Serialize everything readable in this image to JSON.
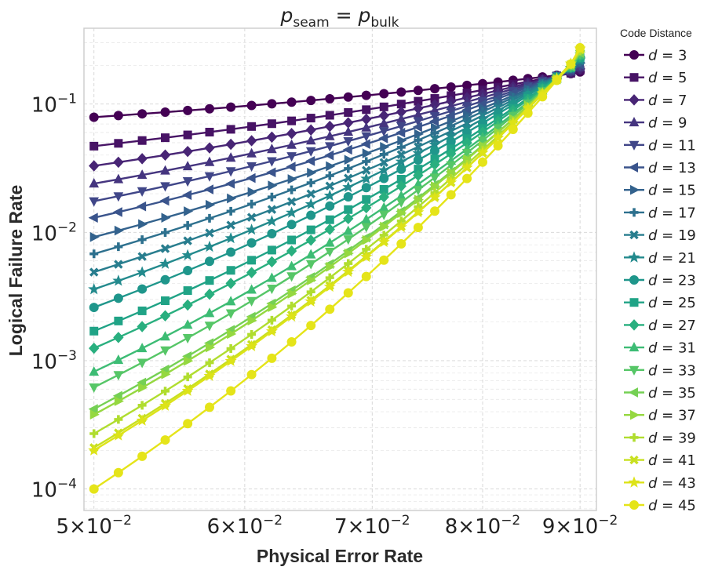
{
  "chart_data": {
    "type": "line",
    "title": "p_seam = p_bulk",
    "title_parts": {
      "p1": "p",
      "sub1": "seam",
      "eq": " = ",
      "p2": "p",
      "sub2": "bulk"
    },
    "xlabel": "Physical Error Rate",
    "ylabel": "Logical Failure Rate",
    "xscale": "log",
    "yscale": "log",
    "xlim": [
      0.0494,
      0.0918
    ],
    "ylim": [
      6.8e-05,
      0.39
    ],
    "xticks": [
      {
        "value": 0.05,
        "mant": "5",
        "times": "×",
        "base": "10",
        "exp": "−2"
      },
      {
        "value": 0.06,
        "mant": "6",
        "times": "×",
        "base": "10",
        "exp": "−2"
      },
      {
        "value": 0.07,
        "mant": "7",
        "times": "×",
        "base": "10",
        "exp": "−2"
      },
      {
        "value": 0.08,
        "mant": "8",
        "times": "×",
        "base": "10",
        "exp": "−2"
      },
      {
        "value": 0.09,
        "mant": "9",
        "times": "×",
        "base": "10",
        "exp": "−2"
      }
    ],
    "yticks": [
      {
        "value": 0.1,
        "base": "10",
        "exp": "−1"
      },
      {
        "value": 0.01,
        "base": "10",
        "exp": "−2"
      },
      {
        "value": 0.001,
        "base": "10",
        "exp": "−3"
      },
      {
        "value": 0.0001,
        "base": "10",
        "exp": "−4"
      }
    ],
    "grid": true,
    "legend_title": "Code Distance",
    "legend_position": "outside-right",
    "x": [
      0.05,
      0.0515,
      0.053,
      0.0545,
      0.056,
      0.0575,
      0.059,
      0.0605,
      0.062,
      0.0635,
      0.065,
      0.0665,
      0.068,
      0.0695,
      0.071,
      0.0725,
      0.074,
      0.0755,
      0.077,
      0.0785,
      0.08,
      0.0815,
      0.083,
      0.0845,
      0.086,
      0.0875,
      0.089,
      0.09
    ],
    "series": [
      {
        "name": "d = 3",
        "label_var": "d",
        "label_eq": " = ",
        "label_num": "3",
        "marker": "circle",
        "color": "#440154",
        "y_start": 0.079,
        "y_end": 0.178
      },
      {
        "name": "d = 5",
        "label_var": "d",
        "label_eq": " = ",
        "label_num": "5",
        "marker": "square",
        "color": "#471365",
        "y_start": 0.047,
        "y_end": 0.183
      },
      {
        "name": "d = 7",
        "label_var": "d",
        "label_eq": " = ",
        "label_num": "7",
        "marker": "diamond",
        "color": "#482575",
        "y_start": 0.033,
        "y_end": 0.188
      },
      {
        "name": "d = 9",
        "label_var": "d",
        "label_eq": " = ",
        "label_num": "9",
        "marker": "triangle-up",
        "color": "#45357f",
        "y_start": 0.024,
        "y_end": 0.193
      },
      {
        "name": "d = 11",
        "label_var": "d",
        "label_eq": " = ",
        "label_num": "11",
        "marker": "triangle-down",
        "color": "#404688",
        "y_start": 0.0175,
        "y_end": 0.198
      },
      {
        "name": "d = 13",
        "label_var": "d",
        "label_eq": " = ",
        "label_num": "13",
        "marker": "triangle-left",
        "color": "#3a548c",
        "y_start": 0.013,
        "y_end": 0.203
      },
      {
        "name": "d = 15",
        "label_var": "d",
        "label_eq": " = ",
        "label_num": "15",
        "marker": "triangle-right",
        "color": "#33628d",
        "y_start": 0.0092,
        "y_end": 0.208
      },
      {
        "name": "d = 17",
        "label_var": "d",
        "label_eq": " = ",
        "label_num": "17",
        "marker": "plus",
        "color": "#2d708e",
        "y_start": 0.0068,
        "y_end": 0.213
      },
      {
        "name": "d = 19",
        "label_var": "d",
        "label_eq": " = ",
        "label_num": "19",
        "marker": "x",
        "color": "#287d8e",
        "y_start": 0.0049,
        "y_end": 0.218
      },
      {
        "name": "d = 21",
        "label_var": "d",
        "label_eq": " = ",
        "label_num": "21",
        "marker": "star",
        "color": "#238a8d",
        "y_start": 0.0036,
        "y_end": 0.222
      },
      {
        "name": "d = 23",
        "label_var": "d",
        "label_eq": " = ",
        "label_num": "23",
        "marker": "circle",
        "color": "#1f968b",
        "y_start": 0.0026,
        "y_end": 0.226
      },
      {
        "name": "d = 25",
        "label_var": "d",
        "label_eq": " = ",
        "label_num": "25",
        "marker": "square",
        "color": "#20a386",
        "y_start": 0.0017,
        "y_end": 0.23
      },
      {
        "name": "d = 27",
        "label_var": "d",
        "label_eq": " = ",
        "label_num": "27",
        "marker": "diamond",
        "color": "#29af7f",
        "y_start": 0.00125,
        "y_end": 0.235
      },
      {
        "name": "d = 31",
        "label_var": "d",
        "label_eq": " = ",
        "label_num": "31",
        "marker": "triangle-up",
        "color": "#3dbc74",
        "y_start": 0.00082,
        "y_end": 0.24
      },
      {
        "name": "d = 33",
        "label_var": "d",
        "label_eq": " = ",
        "label_num": "33",
        "marker": "triangle-down",
        "color": "#56c667",
        "y_start": 0.00062,
        "y_end": 0.245
      },
      {
        "name": "d = 35",
        "label_var": "d",
        "label_eq": " = ",
        "label_num": "35",
        "marker": "triangle-left",
        "color": "#75d054",
        "y_start": 0.00042,
        "y_end": 0.25
      },
      {
        "name": "d = 37",
        "label_var": "d",
        "label_eq": " = ",
        "label_num": "37",
        "marker": "triangle-right",
        "color": "#95d840",
        "y_start": 0.00038,
        "y_end": 0.255
      },
      {
        "name": "d = 39",
        "label_var": "d",
        "label_eq": " = ",
        "label_num": "39",
        "marker": "plus",
        "color": "#b0dd2f",
        "y_start": 0.00027,
        "y_end": 0.26
      },
      {
        "name": "d = 41",
        "label_var": "d",
        "label_eq": " = ",
        "label_num": "41",
        "marker": "x",
        "color": "#c8e020",
        "y_start": 0.00021,
        "y_end": 0.265
      },
      {
        "name": "d = 43",
        "label_var": "d",
        "label_eq": " = ",
        "label_num": "43",
        "marker": "star",
        "color": "#dde318",
        "y_start": 0.0002,
        "y_end": 0.27
      },
      {
        "name": "d = 45",
        "label_var": "d",
        "label_eq": " = ",
        "label_num": "45",
        "marker": "circle",
        "color": "#e5e419",
        "y_start": 0.0001,
        "y_end": 0.275
      }
    ]
  }
}
